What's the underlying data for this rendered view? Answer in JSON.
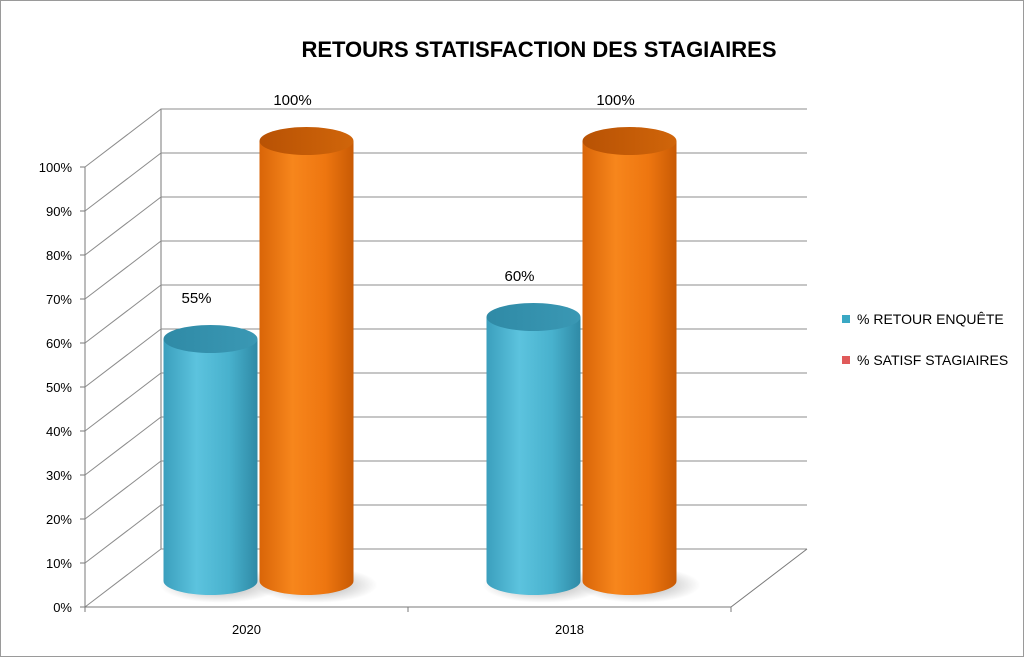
{
  "chart_data": {
    "type": "bar",
    "style": "3d-cylinder",
    "title": "RETOURS STATISFACTION DES STAGIAIRES",
    "categories": [
      "2020",
      "2018"
    ],
    "series": [
      {
        "name": "% RETOUR ENQUÊTE",
        "values": [
          55,
          60
        ],
        "labels": [
          "55%",
          "60%"
        ],
        "color": "#4bb3cf",
        "legend_color": "#3aa8c4"
      },
      {
        "name": "% SATISF STAGIAIRES",
        "values": [
          100,
          100
        ],
        "labels": [
          "100%",
          "100%"
        ],
        "color": "#f07a10",
        "legend_color": "#e05a5a"
      }
    ],
    "ylim": [
      0,
      100
    ],
    "yticks": [
      "0%",
      "10%",
      "20%",
      "30%",
      "40%",
      "50%",
      "60%",
      "70%",
      "80%",
      "90%",
      "100%"
    ],
    "grid": true,
    "legend": "right"
  }
}
